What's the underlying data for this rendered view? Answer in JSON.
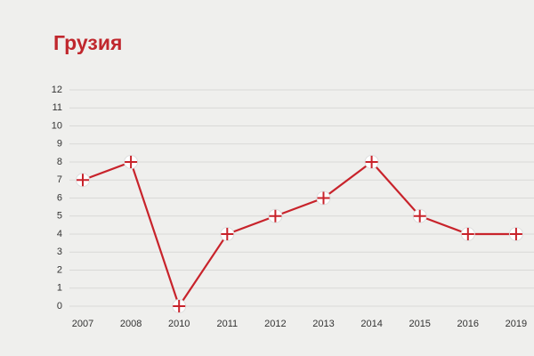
{
  "chart_data": {
    "type": "line",
    "title": "Грузия",
    "categories": [
      "2007",
      "2008",
      "2010",
      "2011",
      "2012",
      "2013",
      "2014",
      "2015",
      "2016",
      "2019"
    ],
    "values": [
      7,
      8,
      0,
      4,
      5,
      6,
      8,
      5,
      4,
      4
    ],
    "color": "#c8232b",
    "ylim": [
      0,
      12
    ],
    "yticks": [
      0,
      1,
      2,
      3,
      4,
      5,
      6,
      7,
      8,
      9,
      10,
      11,
      12
    ],
    "grid": true
  }
}
